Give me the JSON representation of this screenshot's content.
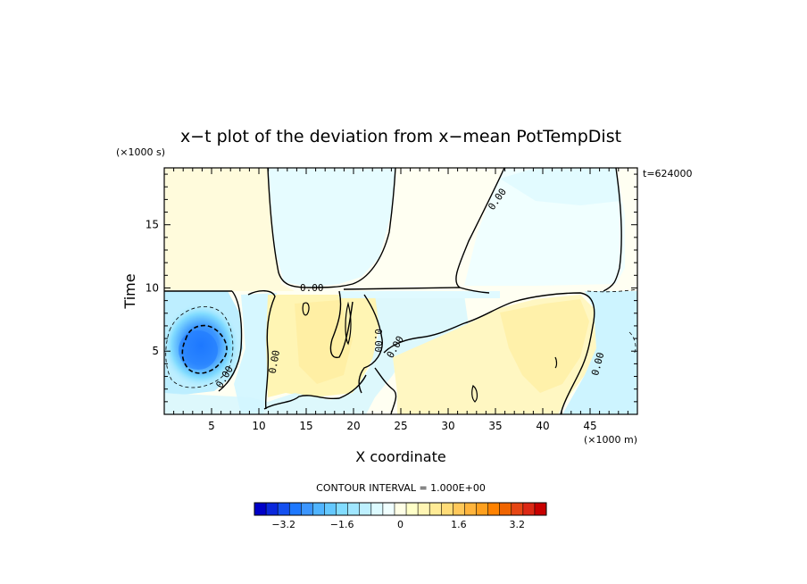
{
  "chart_data": {
    "type": "contour",
    "title": "x−t plot of the deviation from x−mean PotTempDist",
    "xlabel": "X coordinate",
    "ylabel": "Time",
    "x_unit": "(×1000 m)",
    "y_unit": "(×1000 s)",
    "timestamp": "t=624000",
    "xlim": [
      0,
      50
    ],
    "ylim": [
      0,
      19.5
    ],
    "x_ticks": [
      5,
      10,
      15,
      20,
      25,
      30,
      35,
      40,
      45
    ],
    "y_ticks": [
      5,
      10,
      15
    ],
    "contour_interval_text": "CONTOUR INTERVAL = 1.000E+00",
    "zero_contour_label": "0.00",
    "colorbar": {
      "range": [
        -4,
        4
      ],
      "tick_values": [
        -3.2,
        -1.6,
        0,
        1.6,
        3.2
      ],
      "tick_labels": [
        "−3.2",
        "−1.6",
        "0",
        "1.6",
        "3.2"
      ],
      "colors": [
        "#0000c8",
        "#0a28dc",
        "#1450f0",
        "#1e78ff",
        "#3c96ff",
        "#50b4ff",
        "#64c8ff",
        "#82dcff",
        "#a0e6ff",
        "#bef0ff",
        "#dcfaff",
        "#f0ffff",
        "#ffffe6",
        "#ffffc8",
        "#fff5b4",
        "#ffeb96",
        "#ffdc78",
        "#ffc85a",
        "#ffb43c",
        "#ffa01e",
        "#ff8200",
        "#f06400",
        "#e64614",
        "#dc2814",
        "#c80000"
      ]
    },
    "regions": [
      {
        "name": "upper-left",
        "x": [
          0,
          12
        ],
        "t": [
          10,
          19.5
        ],
        "value": 0.3
      },
      {
        "name": "upper-middle",
        "x": [
          12,
          31
        ],
        "t": [
          10,
          19.5
        ],
        "value": -0.3
      },
      {
        "name": "upper-right",
        "x": [
          31,
          50
        ],
        "t": [
          10,
          19.5
        ],
        "value": 0.2
      },
      {
        "name": "lower-left-cold-core",
        "x": [
          0,
          8
        ],
        "t": [
          3,
          9.5
        ],
        "value": -3.5
      },
      {
        "name": "lower-middle-warm",
        "x": [
          11,
          24
        ],
        "t": [
          0,
          10
        ],
        "value": 0.8
      },
      {
        "name": "lower-right-warm",
        "x": [
          30,
          45
        ],
        "t": [
          0,
          9
        ],
        "value": 0.6
      },
      {
        "name": "lower-far-right-cool",
        "x": [
          45,
          50
        ],
        "t": [
          0,
          10
        ],
        "value": -0.5
      }
    ]
  }
}
